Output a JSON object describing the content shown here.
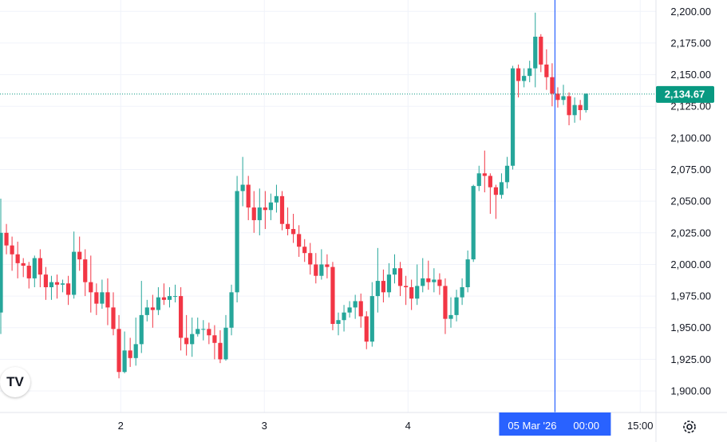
{
  "chart_data": {
    "type": "candlestick",
    "y_axis": {
      "ticks": [
        "2,200.00",
        "2,175.00",
        "2,150.00",
        "2,125.00",
        "2,100.00",
        "2,075.00",
        "2,050.00",
        "2,025.00",
        "2,000.00",
        "1,975.00",
        "1,950.00",
        "1,925.00",
        "1,900.00"
      ],
      "tick_values": [
        2200,
        2175,
        2150,
        2125,
        2100,
        2075,
        2050,
        2025,
        2000,
        1975,
        1950,
        1925,
        1900
      ],
      "range": [
        1883,
        2209
      ]
    },
    "x_axis": {
      "ticks": [
        "2",
        "3",
        "4",
        "15:00"
      ],
      "range": [
        0,
        100
      ]
    },
    "last_price": {
      "value": 2134.67,
      "label": "2,134.67"
    },
    "crosshair": {
      "label_date": "05 Mar '26",
      "label_time": "00:00"
    },
    "colors": {
      "up": "#26a69a",
      "down": "#f23645",
      "crosshair": "#2962ff",
      "last_price": "#089981"
    },
    "candles": [
      [
        1962,
        2025,
        1945,
        2052
      ],
      [
        2025,
        2015,
        2008,
        2032
      ],
      [
        2015,
        2008,
        1995,
        2022
      ],
      [
        2008,
        2001,
        1989,
        2018
      ],
      [
        2001,
        1999,
        1990,
        2005
      ],
      [
        1999,
        1989,
        1981,
        2002
      ],
      [
        1989,
        2005,
        1982,
        2007
      ],
      [
        2005,
        1992,
        1982,
        2012
      ],
      [
        1992,
        1982,
        1972,
        1998
      ],
      [
        1982,
        1986,
        1972,
        1991
      ],
      [
        1986,
        1984,
        1973,
        1992
      ],
      [
        1984,
        1985,
        1978,
        1988
      ],
      [
        1985,
        1976,
        1968,
        1991
      ],
      [
        1976,
        2010,
        1973,
        2026
      ],
      [
        2010,
        2004,
        1995,
        2022
      ],
      [
        2004,
        1986,
        1975,
        2012
      ],
      [
        1986,
        1978,
        1962,
        2007
      ],
      [
        1978,
        1969,
        1960,
        1985
      ],
      [
        1969,
        1978,
        1965,
        1988
      ],
      [
        1978,
        1966,
        1952,
        1989
      ],
      [
        1966,
        1949,
        1944,
        1978
      ],
      [
        1949,
        1915,
        1910,
        1960
      ],
      [
        1915,
        1932,
        1914,
        1947
      ],
      [
        1932,
        1926,
        1919,
        1942
      ],
      [
        1926,
        1937,
        1920,
        1958
      ],
      [
        1937,
        1960,
        1930,
        1987
      ],
      [
        1960,
        1966,
        1955,
        1972
      ],
      [
        1966,
        1964,
        1950,
        1976
      ],
      [
        1964,
        1974,
        1960,
        1982
      ],
      [
        1974,
        1972,
        1968,
        1985
      ],
      [
        1972,
        1975,
        1966,
        1982
      ],
      [
        1975,
        1975,
        1970,
        1984
      ],
      [
        1975,
        1942,
        1932,
        1982
      ],
      [
        1942,
        1937,
        1928,
        1960
      ],
      [
        1937,
        1945,
        1927,
        1958
      ],
      [
        1945,
        1949,
        1943,
        1958
      ],
      [
        1949,
        1949,
        1940,
        1956
      ],
      [
        1949,
        1944,
        1937,
        1954
      ],
      [
        1944,
        1938,
        1925,
        1952
      ],
      [
        1938,
        1925,
        1922,
        1948
      ],
      [
        1925,
        1950,
        1924,
        1960
      ],
      [
        1950,
        1978,
        1944,
        1984
      ],
      [
        1978,
        2058,
        1970,
        2070
      ],
      [
        2058,
        2063,
        2046,
        2085
      ],
      [
        2063,
        2045,
        2035,
        2070
      ],
      [
        2045,
        2035,
        2025,
        2058
      ],
      [
        2035,
        2045,
        2023,
        2060
      ],
      [
        2045,
        2043,
        2028,
        2058
      ],
      [
        2043,
        2049,
        2035,
        2056
      ],
      [
        2049,
        2054,
        2041,
        2063
      ],
      [
        2054,
        2032,
        2027,
        2058
      ],
      [
        2032,
        2028,
        2023,
        2045
      ],
      [
        2028,
        2024,
        2017,
        2040
      ],
      [
        2024,
        2014,
        2006,
        2031
      ],
      [
        2014,
        2009,
        2002,
        2020
      ],
      [
        2009,
        2000,
        1992,
        2017
      ],
      [
        2000,
        1991,
        1985,
        2009
      ],
      [
        1991,
        2000,
        1988,
        2012
      ],
      [
        2000,
        1998,
        1989,
        2008
      ],
      [
        1998,
        1953,
        1948,
        2002
      ],
      [
        1953,
        1956,
        1944,
        1962
      ],
      [
        1956,
        1962,
        1947,
        1968
      ],
      [
        1962,
        1966,
        1958,
        1971
      ],
      [
        1966,
        1971,
        1957,
        1976
      ],
      [
        1971,
        1959,
        1950,
        1977
      ],
      [
        1959,
        1939,
        1933,
        1963
      ],
      [
        1939,
        1975,
        1935,
        1986
      ],
      [
        1975,
        1987,
        1962,
        2013
      ],
      [
        1987,
        1978,
        1970,
        1996
      ],
      [
        1978,
        1992,
        1974,
        2001
      ],
      [
        1992,
        1997,
        1985,
        2008
      ],
      [
        1997,
        1983,
        1975,
        2002
      ],
      [
        1983,
        1982,
        1968,
        1991
      ],
      [
        1982,
        1973,
        1964,
        1988
      ],
      [
        1973,
        1983,
        1968,
        2000
      ],
      [
        1983,
        1989,
        1978,
        2005
      ],
      [
        1989,
        1986,
        1980,
        2003
      ],
      [
        1986,
        1988,
        1978,
        1997
      ],
      [
        1988,
        1983,
        1976,
        1993
      ],
      [
        1983,
        1957,
        1945,
        1989
      ],
      [
        1957,
        1960,
        1950,
        1974
      ],
      [
        1960,
        1974,
        1955,
        1980
      ],
      [
        1974,
        1982,
        1968,
        1989
      ],
      [
        1982,
        2004,
        1978,
        2011
      ],
      [
        2004,
        2062,
        2002,
        2063
      ],
      [
        2062,
        2072,
        2058,
        2078
      ],
      [
        2072,
        2070,
        2057,
        2090
      ],
      [
        2070,
        2061,
        2040,
        2072
      ],
      [
        2061,
        2055,
        2036,
        2063
      ],
      [
        2055,
        2065,
        2052,
        2072
      ],
      [
        2065,
        2078,
        2060,
        2085
      ],
      [
        2078,
        2155,
        2075,
        2157
      ],
      [
        2155,
        2145,
        2132,
        2158
      ],
      [
        2145,
        2149,
        2140,
        2155
      ],
      [
        2149,
        2155,
        2144,
        2161
      ],
      [
        2155,
        2180,
        2140,
        2199
      ],
      [
        2180,
        2158,
        2152,
        2182
      ],
      [
        2158,
        2148,
        2138,
        2170
      ],
      [
        2148,
        2135,
        2125,
        2159
      ],
      [
        2135,
        2130,
        2124,
        2140
      ],
      [
        2130,
        2133,
        2126,
        2142
      ],
      [
        2133,
        2118,
        2110,
        2136
      ],
      [
        2118,
        2126,
        2112,
        2132
      ],
      [
        2126,
        2122,
        2114,
        2130
      ],
      [
        2122,
        2135,
        2120,
        2135
      ]
    ]
  }
}
